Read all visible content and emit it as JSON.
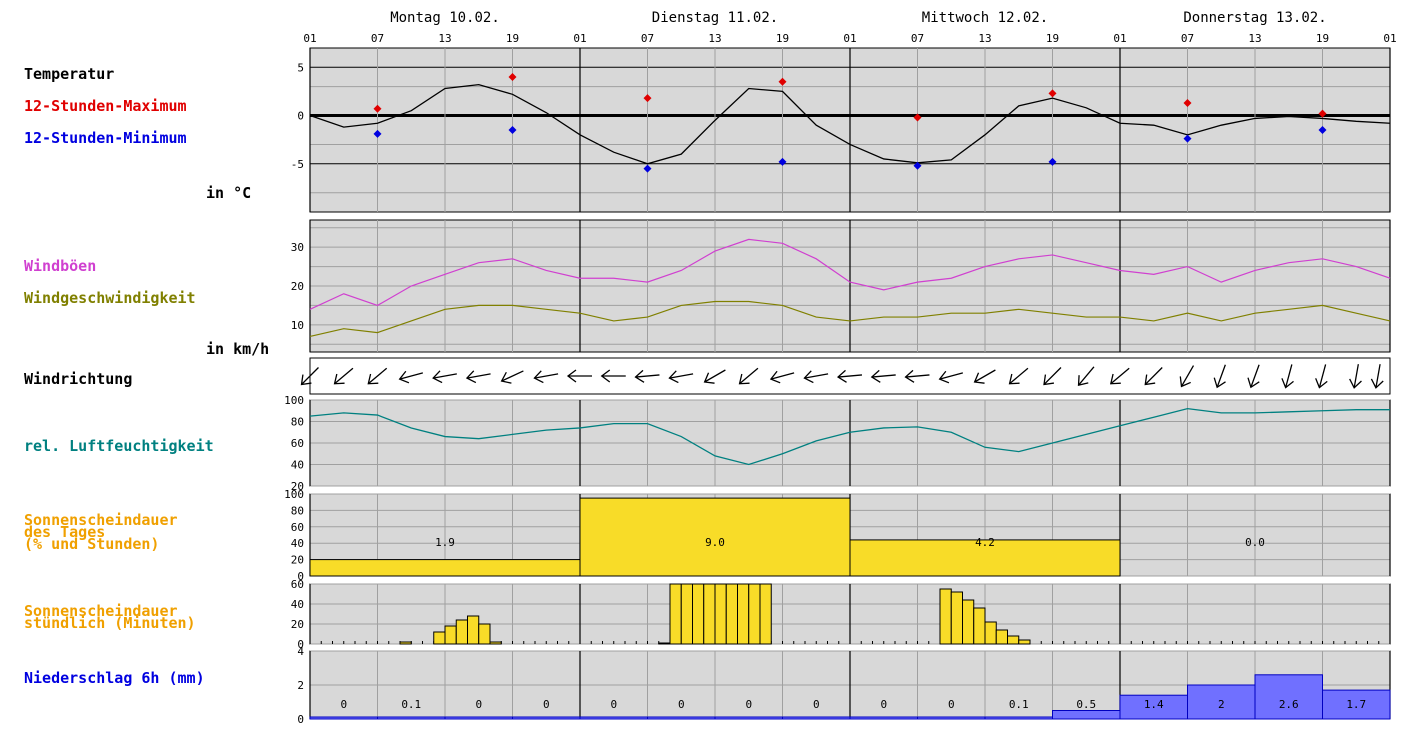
{
  "days": [
    "Montag 10.02.",
    "Dienstag 11.02.",
    "Mittwoch 12.02.",
    "Donnerstag 13.02."
  ],
  "hour_ticks": [
    "01",
    "07",
    "13",
    "19",
    "01",
    "07",
    "13",
    "19",
    "01",
    "07",
    "13",
    "19",
    "01",
    "07",
    "13",
    "19",
    "01"
  ],
  "labels": {
    "temperatur": "Temperatur",
    "max": "12-Stunden-Maximum",
    "min": "12-Stunden-Minimum",
    "temp_unit": "in °C",
    "windboeen": "Windböen",
    "windgeschw": "Windgeschwindigkeit",
    "wind_unit": "in km/h",
    "windrichtung": "Windrichtung",
    "feuchte": "rel. Luftfeuchtigkeit",
    "sonne_tag": "Sonnenscheindauer\ndes Tages\n(% und Stunden)",
    "sonne_std": "Sonnenscheindauer\nstündlich (Minuten)",
    "niederschlag": "Niederschlag 6h (mm)"
  },
  "colors": {
    "max": "#e00000",
    "min": "#0000e0",
    "gusts": "#d040d0",
    "wind": "#808000",
    "humidity": "#008080",
    "sun_label": "#f0a000",
    "sun_fill": "#f8dc28",
    "precip_fill": "#7070ff",
    "precip_label": "#0000e0",
    "panel_bg": "#d8d8d8"
  },
  "chart_data": [
    {
      "type": "line",
      "name": "temperature",
      "x_hours": [
        0,
        3,
        6,
        9,
        12,
        15,
        18,
        21,
        24,
        27,
        30,
        33,
        36,
        39,
        42,
        45,
        48,
        51,
        54,
        57,
        60,
        63,
        66,
        69,
        72,
        75,
        78,
        81,
        84,
        87,
        90,
        93,
        96
      ],
      "values": [
        0,
        -1.2,
        -0.8,
        0.5,
        2.8,
        3.2,
        2.2,
        0.3,
        -2.0,
        -3.8,
        -5.0,
        -4.0,
        -0.5,
        2.8,
        2.5,
        -1.0,
        -3.0,
        -4.5,
        -4.9,
        -4.6,
        -2.0,
        1.0,
        1.8,
        0.8,
        -0.8,
        -1.0,
        -2.0,
        -1.0,
        -0.3,
        -0.1,
        -0.3,
        -0.6,
        -0.8
      ],
      "max_points": [
        {
          "x_hours": 6,
          "value": 0.7
        },
        {
          "x_hours": 18,
          "value": 4.0
        },
        {
          "x_hours": 30,
          "value": 1.8
        },
        {
          "x_hours": 42,
          "value": 3.5
        },
        {
          "x_hours": 54,
          "value": -0.2
        },
        {
          "x_hours": 66,
          "value": 2.3
        },
        {
          "x_hours": 78,
          "value": 1.3
        },
        {
          "x_hours": 90,
          "value": 0.2
        }
      ],
      "min_points": [
        {
          "x_hours": 6,
          "value": -1.9
        },
        {
          "x_hours": 18,
          "value": -1.5
        },
        {
          "x_hours": 30,
          "value": -5.5
        },
        {
          "x_hours": 42,
          "value": -4.8
        },
        {
          "x_hours": 54,
          "value": -5.2
        },
        {
          "x_hours": 66,
          "value": -4.8
        },
        {
          "x_hours": 78,
          "value": -2.4
        },
        {
          "x_hours": 90,
          "value": -1.5
        }
      ],
      "ylim": [
        -10,
        7
      ],
      "yticks": [
        -5,
        0,
        5
      ]
    },
    {
      "type": "line",
      "name": "wind",
      "x_hours": [
        0,
        3,
        6,
        9,
        12,
        15,
        18,
        21,
        24,
        27,
        30,
        33,
        36,
        39,
        42,
        45,
        48,
        51,
        54,
        57,
        60,
        63,
        66,
        69,
        72,
        75,
        78,
        81,
        84,
        87,
        90,
        93,
        96
      ],
      "series": [
        {
          "name": "Windböen",
          "values": [
            14,
            18,
            15,
            20,
            23,
            26,
            27,
            24,
            22,
            22,
            21,
            24,
            29,
            32,
            31,
            27,
            21,
            19,
            21,
            22,
            25,
            27,
            28,
            26,
            24,
            23,
            25,
            21,
            24,
            26,
            27,
            25,
            22
          ]
        },
        {
          "name": "Windgeschwindigkeit",
          "values": [
            7,
            9,
            8,
            11,
            14,
            15,
            15,
            14,
            13,
            11,
            12,
            15,
            16,
            16,
            15,
            12,
            11,
            12,
            12,
            13,
            13,
            14,
            13,
            12,
            12,
            11,
            13,
            11,
            13,
            14,
            15,
            13,
            11
          ]
        }
      ],
      "ylim": [
        3,
        37
      ],
      "yticks": [
        10,
        20,
        30
      ]
    },
    {
      "type": "line",
      "name": "wind_direction",
      "x_hours": [
        0,
        3,
        6,
        9,
        12,
        15,
        18,
        21,
        24,
        27,
        30,
        33,
        36,
        39,
        42,
        45,
        48,
        51,
        54,
        57,
        60,
        63,
        66,
        69,
        72,
        75,
        78,
        81,
        84,
        87,
        90,
        93,
        96
      ],
      "direction_deg": [
        45,
        50,
        50,
        75,
        80,
        80,
        65,
        80,
        90,
        90,
        85,
        80,
        60,
        50,
        75,
        80,
        85,
        85,
        85,
        75,
        60,
        50,
        45,
        40,
        50,
        45,
        30,
        20,
        20,
        15,
        15,
        10,
        10
      ]
    },
    {
      "type": "line",
      "name": "humidity",
      "x_hours": [
        0,
        3,
        6,
        9,
        12,
        15,
        18,
        21,
        24,
        27,
        30,
        33,
        36,
        39,
        42,
        45,
        48,
        51,
        54,
        57,
        60,
        63,
        66,
        69,
        72,
        75,
        78,
        81,
        84,
        87,
        90,
        93,
        96
      ],
      "values": [
        85,
        88,
        86,
        74,
        66,
        64,
        68,
        72,
        74,
        78,
        78,
        66,
        48,
        40,
        50,
        62,
        70,
        74,
        75,
        70,
        56,
        52,
        60,
        68,
        76,
        84,
        92,
        88,
        88,
        89,
        90,
        91,
        91
      ],
      "ylim": [
        20,
        100
      ],
      "yticks": [
        20,
        40,
        60,
        80,
        100
      ]
    },
    {
      "type": "bar",
      "name": "sunshine_daily",
      "categories": [
        "Montag 10.02.",
        "Dienstag 11.02.",
        "Mittwoch 12.02.",
        "Donnerstag 13.02."
      ],
      "percent": [
        20,
        95,
        44,
        0
      ],
      "hours_labels": [
        "1.9",
        "9.0",
        "4.2",
        "0.0"
      ],
      "ylim": [
        0,
        100
      ],
      "yticks": [
        0,
        20,
        40,
        60,
        80,
        100
      ]
    },
    {
      "type": "bar",
      "name": "sunshine_hourly",
      "x_hours": [
        4,
        5,
        6,
        7,
        8,
        9,
        10,
        11,
        12,
        13,
        14,
        15,
        16,
        17,
        18,
        19,
        20,
        21,
        22,
        23,
        24,
        25,
        26,
        27,
        28,
        29,
        30,
        31,
        32,
        33,
        34,
        35,
        36,
        37,
        38,
        39,
        40,
        41,
        42,
        43,
        44,
        45,
        46,
        47,
        48,
        49,
        50,
        51,
        52,
        53,
        54,
        55,
        56,
        57,
        58,
        59,
        60,
        61,
        62,
        63,
        64,
        65,
        66,
        67,
        68,
        69,
        70,
        71,
        72,
        73,
        74,
        75,
        76,
        77,
        78,
        79,
        80,
        81,
        82,
        83,
        84,
        85,
        86,
        87,
        88,
        89,
        90,
        91,
        92,
        93,
        94,
        95
      ],
      "minutes": [
        0,
        0,
        0,
        0,
        2,
        0,
        0,
        12,
        18,
        24,
        28,
        20,
        2,
        0,
        0,
        0,
        0,
        0,
        0,
        0,
        0,
        0,
        0,
        0,
        0,
        0,
        0,
        1,
        60,
        60,
        60,
        60,
        60,
        60,
        60,
        60,
        60,
        0,
        0,
        0,
        0,
        0,
        0,
        0,
        0,
        0,
        0,
        0,
        0,
        0,
        0,
        0,
        55,
        52,
        44,
        36,
        22,
        14,
        8,
        4,
        0,
        0,
        0,
        0,
        0,
        0,
        0,
        0,
        0,
        0,
        0,
        0,
        0,
        0,
        0,
        0,
        0,
        0,
        0,
        0,
        0,
        0,
        0,
        0,
        0,
        0,
        0,
        0,
        0,
        0,
        0,
        0
      ],
      "ylim": [
        0,
        60
      ],
      "yticks": [
        0,
        20,
        40,
        60
      ]
    },
    {
      "type": "bar",
      "name": "precipitation_6h",
      "x_start_hours": [
        0,
        6,
        12,
        18,
        24,
        30,
        36,
        42,
        48,
        54,
        60,
        66,
        72,
        78,
        84,
        90
      ],
      "values": [
        0,
        0.1,
        0,
        0,
        0,
        0,
        0,
        0,
        0,
        0,
        0.1,
        0.5,
        1.4,
        2,
        2.6,
        1.7
      ],
      "value_labels": [
        "0",
        "0.1",
        "0",
        "0",
        "0",
        "0",
        "0",
        "0",
        "0",
        "0",
        "0.1",
        "0.5",
        "1.4",
        "2",
        "2.6",
        "1.7"
      ],
      "ylim": [
        0,
        4
      ],
      "yticks": [
        0,
        2,
        4
      ]
    }
  ]
}
